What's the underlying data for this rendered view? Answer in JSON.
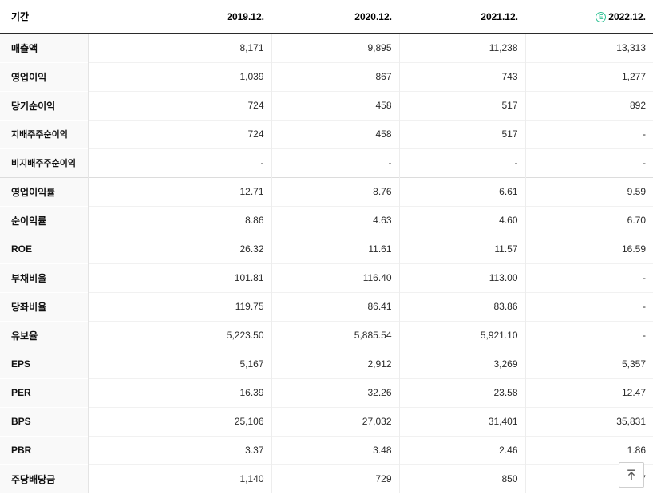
{
  "header": {
    "period_label": "기간",
    "columns": [
      "2019.12.",
      "2020.12.",
      "2021.12.",
      "2022.12."
    ],
    "estimate_badge": "E",
    "estimate_column_index": 3
  },
  "colors": {
    "estimate_green": "#2ec193",
    "header_rule": "#2b2b2b"
  },
  "rows": [
    {
      "label": "매출액",
      "values": [
        "8,171",
        "9,895",
        "11,238",
        "13,313"
      ],
      "sub": false,
      "group_start": false
    },
    {
      "label": "영업이익",
      "values": [
        "1,039",
        "867",
        "743",
        "1,277"
      ],
      "sub": false,
      "group_start": false
    },
    {
      "label": "당기순이익",
      "values": [
        "724",
        "458",
        "517",
        "892"
      ],
      "sub": false,
      "group_start": false
    },
    {
      "label": "지배주주순이익",
      "values": [
        "724",
        "458",
        "517",
        "-"
      ],
      "sub": true,
      "group_start": false
    },
    {
      "label": "비지배주주순이익",
      "values": [
        "-",
        "-",
        "-",
        "-"
      ],
      "sub": true,
      "group_start": false
    },
    {
      "label": "영업이익률",
      "values": [
        "12.71",
        "8.76",
        "6.61",
        "9.59"
      ],
      "sub": false,
      "group_start": true
    },
    {
      "label": "순이익률",
      "values": [
        "8.86",
        "4.63",
        "4.60",
        "6.70"
      ],
      "sub": false,
      "group_start": false
    },
    {
      "label": "ROE",
      "values": [
        "26.32",
        "11.61",
        "11.57",
        "16.59"
      ],
      "sub": false,
      "group_start": false
    },
    {
      "label": "부채비율",
      "values": [
        "101.81",
        "116.40",
        "113.00",
        "-"
      ],
      "sub": false,
      "group_start": false
    },
    {
      "label": "당좌비율",
      "values": [
        "119.75",
        "86.41",
        "83.86",
        "-"
      ],
      "sub": false,
      "group_start": false
    },
    {
      "label": "유보율",
      "values": [
        "5,223.50",
        "5,885.54",
        "5,921.10",
        "-"
      ],
      "sub": false,
      "group_start": false
    },
    {
      "label": "EPS",
      "values": [
        "5,167",
        "2,912",
        "3,269",
        "5,357"
      ],
      "sub": false,
      "group_start": true
    },
    {
      "label": "PER",
      "values": [
        "16.39",
        "32.26",
        "23.58",
        "12.47"
      ],
      "sub": false,
      "group_start": false
    },
    {
      "label": "BPS",
      "values": [
        "25,106",
        "27,032",
        "31,401",
        "35,831"
      ],
      "sub": false,
      "group_start": false
    },
    {
      "label": "PBR",
      "values": [
        "3.37",
        "3.48",
        "2.46",
        "1.86"
      ],
      "sub": false,
      "group_start": false
    },
    {
      "label": "주당배당금",
      "values": [
        "1,140",
        "729",
        "850",
        "7"
      ],
      "sub": false,
      "group_start": false,
      "last_value_obscured": true
    }
  ],
  "scroll_top_button": {
    "name": "scroll-to-top"
  }
}
